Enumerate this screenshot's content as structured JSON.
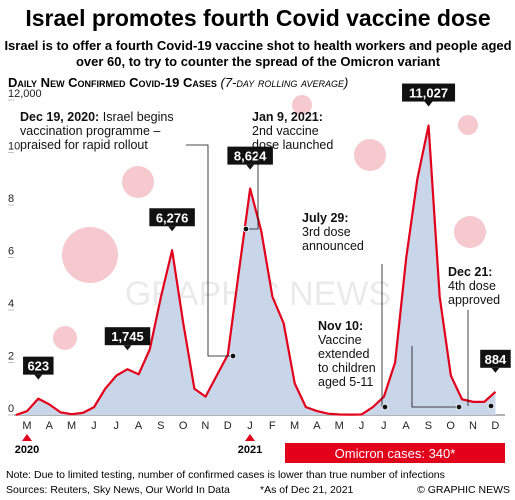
{
  "chart_data": {
    "type": "area",
    "title": "Israel promotes fourth Covid vaccine dose",
    "subtitle": "Israel is to offer a fourth Covid-19 vaccine shot to health workers and people aged over 60, to try to counter the spread of the Omicron variant",
    "y_label": "Daily New Confirmed Covid-19 Cases",
    "y_label_note": "(7-day rolling average)",
    "categories": [
      "M",
      null,
      "A",
      null,
      "M",
      null,
      "J",
      null,
      "J",
      null,
      "A",
      null,
      "S",
      null,
      "O",
      null,
      "N",
      null,
      "D",
      null,
      "J",
      null,
      "F",
      null,
      "M",
      null,
      "A",
      null,
      "M",
      null,
      "J",
      null,
      "J",
      null,
      "A",
      null,
      "S",
      null,
      "O",
      null,
      "N",
      null,
      "D",
      null
    ],
    "years": [
      "2020",
      "2021"
    ],
    "series": [
      {
        "name": "Daily new cases",
        "color": "#e3001b",
        "fill": "#c9d6ea",
        "values": [
          0,
          150,
          623,
          400,
          100,
          30,
          80,
          300,
          1000,
          1500,
          1745,
          1550,
          2500,
          4500,
          6276,
          3500,
          1000,
          700,
          1500,
          2300,
          5500,
          8624,
          7000,
          4500,
          3500,
          1200,
          300,
          150,
          50,
          20,
          15,
          20,
          300,
          700,
          2000,
          6000,
          9000,
          11027,
          4500,
          1500,
          600,
          500,
          500,
          884
        ],
        "value_labels": [
          null,
          null,
          "623",
          null,
          null,
          null,
          null,
          null,
          null,
          null,
          "1,745",
          null,
          null,
          null,
          "6,276",
          null,
          null,
          null,
          null,
          null,
          null,
          "8,624",
          null,
          null,
          null,
          null,
          null,
          null,
          null,
          null,
          null,
          null,
          null,
          null,
          null,
          null,
          null,
          "11,027",
          null,
          null,
          null,
          null,
          null,
          "884"
        ]
      }
    ],
    "ylim": [
      0,
      12000
    ],
    "yticks": [
      0,
      {
        "value": 2000,
        "label": "2"
      },
      {
        "value": 4000,
        "label": "4"
      },
      {
        "value": 6000,
        "label": "6"
      },
      {
        "value": 8000,
        "label": "8"
      },
      {
        "value": 10000,
        "label": "10"
      },
      {
        "value": 12000,
        "label": "12,000"
      }
    ],
    "annotations": [
      {
        "date": "Dec 19, 2020:",
        "lines": [
          "Israel begins",
          "vaccination programme –",
          "praised for rapid rollout"
        ]
      },
      {
        "date": "Jan 9, 2021:",
        "lines": [
          "2nd vaccine",
          "dose launched"
        ]
      },
      {
        "date": "July 29:",
        "lines": [
          "3rd dose",
          "announced"
        ]
      },
      {
        "date": "Nov 10:",
        "lines": [
          "Vaccine",
          "extended",
          "to children",
          "aged 5-11"
        ]
      },
      {
        "date": "Dec 21:",
        "lines": [
          "4th dose",
          "approved"
        ]
      }
    ],
    "omicron": "Omicron cases: 340*",
    "watermark": "GRAPHIC NEWS",
    "note": "Note: Due to limited testing, number of confirmed cases is lower than true number of infections",
    "sources": "Sources: Reuters, Sky News, Our World In Data",
    "asof": "*As of Dec 21, 2021",
    "credit": "© GRAPHIC NEWS"
  }
}
